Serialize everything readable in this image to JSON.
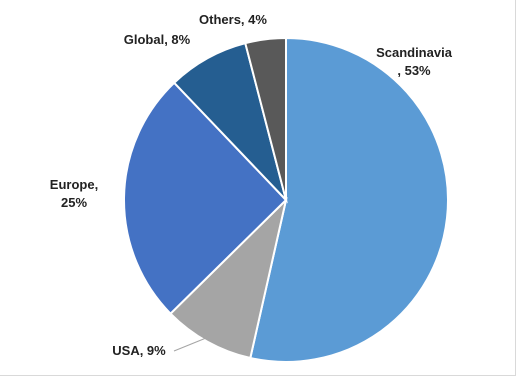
{
  "chart_data": {
    "type": "pie",
    "title": "",
    "slices": [
      {
        "label_line1": "Scandinavia",
        "label_line2": ", 53%",
        "category": "Scandinavia",
        "value": 53,
        "color": "#5b9bd5"
      },
      {
        "label_line1": "USA, 9%",
        "label_line2": "",
        "category": "USA",
        "value": 9,
        "color": "#a5a5a5"
      },
      {
        "label_line1": "Europe,",
        "label_line2": "25%",
        "category": "Europe",
        "value": 25,
        "color": "#4472c4"
      },
      {
        "label_line1": "Global, 8%",
        "label_line2": "",
        "category": "Global",
        "value": 8,
        "color": "#255e91"
      },
      {
        "label_line1": "Others, 4%",
        "label_line2": "",
        "category": "Others",
        "value": 4,
        "color": "#595959"
      }
    ],
    "start": "12 o'clock",
    "direction": "clockwise",
    "legend": "none"
  }
}
